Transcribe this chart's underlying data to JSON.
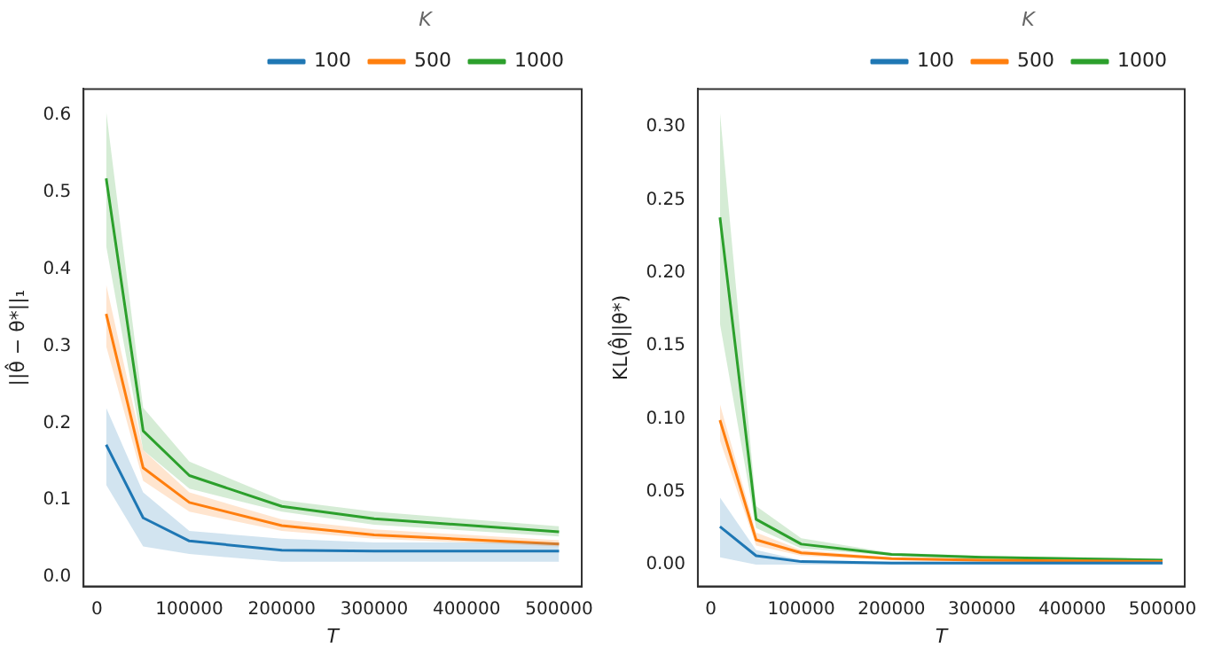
{
  "chart_data": [
    {
      "type": "line",
      "xlabel": "T",
      "ylabel": "||θ̂ − θ*||₁",
      "legend_title": "K",
      "legend": "top right",
      "grid": false,
      "marker": "none",
      "line_style": "solid",
      "x": [
        10000,
        50000,
        100000,
        200000,
        300000,
        500000
      ],
      "xlim": [
        -14500,
        524500
      ],
      "xticks": [
        0,
        100000,
        200000,
        300000,
        400000,
        500000
      ],
      "ylim": [
        -0.012,
        0.634
      ],
      "yticks": [
        {
          "value": 0,
          "label": "0.0"
        },
        0.1,
        0.2,
        0.3,
        0.4,
        0.5,
        0.6
      ],
      "series": [
        {
          "name": "100",
          "color": "#1f77b4",
          "values": [
            0.172,
            0.077,
            0.047,
            0.035,
            0.034,
            0.034
          ],
          "lower": [
            0.12,
            0.04,
            0.03,
            0.02,
            0.02,
            0.02
          ],
          "upper": [
            0.22,
            0.11,
            0.06,
            0.05,
            0.045,
            0.045
          ]
        },
        {
          "name": "500",
          "color": "#ff7f0e",
          "values": [
            0.342,
            0.142,
            0.097,
            0.067,
            0.055,
            0.043
          ],
          "lower": [
            0.3,
            0.125,
            0.085,
            0.06,
            0.05,
            0.04
          ],
          "upper": [
            0.38,
            0.165,
            0.11,
            0.075,
            0.062,
            0.048
          ]
        },
        {
          "name": "1000",
          "color": "#2ca02c",
          "values": [
            0.518,
            0.19,
            0.132,
            0.092,
            0.076,
            0.059
          ],
          "lower": [
            0.43,
            0.165,
            0.115,
            0.085,
            0.068,
            0.053
          ],
          "upper": [
            0.605,
            0.22,
            0.15,
            0.1,
            0.085,
            0.066
          ]
        }
      ]
    },
    {
      "type": "line",
      "xlabel": "T",
      "ylabel": "KL(θ̂||θ*)",
      "legend_title": "K",
      "legend": "top right",
      "grid": false,
      "marker": "none",
      "line_style": "solid",
      "x": [
        10000,
        50000,
        100000,
        200000,
        300000,
        500000
      ],
      "xlim": [
        -14500,
        524500
      ],
      "xticks": [
        0,
        100000,
        200000,
        300000,
        400000,
        500000
      ],
      "ylim": [
        -0.015,
        0.326
      ],
      "yticks": [
        {
          "value": 0,
          "label": "0.00"
        },
        0.05,
        {
          "value": 0.1,
          "label": "0.10"
        },
        0.15,
        {
          "value": 0.2,
          "label": "0.20"
        },
        0.25,
        {
          "value": 0.3,
          "label": "0.30"
        }
      ],
      "series": [
        {
          "name": "100",
          "color": "#1f77b4",
          "values": [
            0.026,
            0.006,
            0.002,
            0.001,
            0.001,
            0.001
          ],
          "lower": [
            0.005,
            0,
            0,
            0,
            0,
            0
          ],
          "upper": [
            0.046,
            0.01,
            0.003,
            0.002,
            0.002,
            0.002
          ]
        },
        {
          "name": "500",
          "color": "#ff7f0e",
          "values": [
            0.099,
            0.017,
            0.008,
            0.004,
            0.003,
            0.002
          ],
          "lower": [
            0.085,
            0.013,
            0.006,
            0.003,
            0.002,
            0.001
          ],
          "upper": [
            0.11,
            0.022,
            0.01,
            0.005,
            0.004,
            0.003
          ]
        },
        {
          "name": "1000",
          "color": "#2ca02c",
          "values": [
            0.238,
            0.031,
            0.014,
            0.007,
            0.005,
            0.003
          ],
          "lower": [
            0.165,
            0.025,
            0.011,
            0.006,
            0.004,
            0.002
          ],
          "upper": [
            0.31,
            0.04,
            0.018,
            0.008,
            0.006,
            0.004
          ]
        }
      ]
    }
  ]
}
